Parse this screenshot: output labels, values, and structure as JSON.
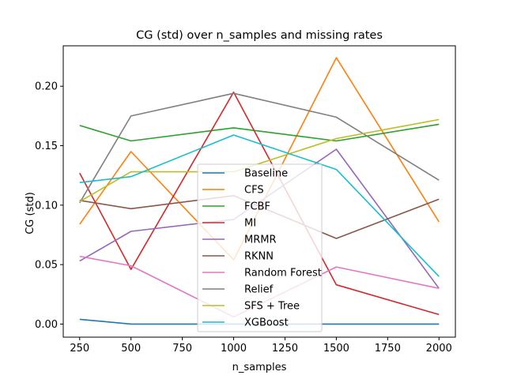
{
  "chart_data": {
    "type": "line",
    "title": "CG (std) over n_samples and missing rates",
    "xlabel": "n_samples",
    "ylabel": "CG (std)",
    "x": [
      250,
      500,
      1000,
      1500,
      2000
    ],
    "xlim": [
      170,
      2080
    ],
    "ylim": [
      -0.011,
      0.234
    ],
    "xticks": [
      250,
      500,
      750,
      1000,
      1250,
      1500,
      1750,
      2000
    ],
    "xtick_labels": [
      "250",
      "500",
      "750",
      "1000",
      "1250",
      "1500",
      "1750",
      "2000"
    ],
    "yticks": [
      0.0,
      0.05,
      0.1,
      0.15,
      0.2
    ],
    "ytick_labels": [
      "0.00",
      "0.05",
      "0.10",
      "0.15",
      "0.20"
    ],
    "grid": false,
    "legend_position": "center",
    "series": [
      {
        "name": "Baseline",
        "color": "#1f77b4",
        "values": [
          0.004,
          0.0,
          0.0,
          0.0,
          0.0
        ]
      },
      {
        "name": "CFS",
        "color": "#ff7f0e",
        "values": [
          0.084,
          0.145,
          0.054,
          0.224,
          0.086
        ]
      },
      {
        "name": "FCBF",
        "color": "#2ca02c",
        "values": [
          0.167,
          0.154,
          0.165,
          0.154,
          0.168
        ]
      },
      {
        "name": "MI",
        "color": "#d62728",
        "values": [
          0.127,
          0.046,
          0.195,
          0.033,
          0.008
        ]
      },
      {
        "name": "MRMR",
        "color": "#9467bd",
        "values": [
          0.053,
          0.078,
          0.088,
          0.147,
          0.03
        ]
      },
      {
        "name": "RKNN",
        "color": "#8c564b",
        "values": [
          0.104,
          0.097,
          0.108,
          0.072,
          0.105
        ]
      },
      {
        "name": "Random Forest",
        "color": "#e377c2",
        "values": [
          0.057,
          0.049,
          0.006,
          0.048,
          0.03
        ]
      },
      {
        "name": "Relief",
        "color": "#7f7f7f",
        "values": [
          0.102,
          0.175,
          0.194,
          0.174,
          0.121
        ]
      },
      {
        "name": "SFS + Tree",
        "color": "#bcbd22",
        "values": [
          0.103,
          0.128,
          0.128,
          0.156,
          0.172
        ]
      },
      {
        "name": "XGBoost",
        "color": "#17becf",
        "values": [
          0.119,
          0.124,
          0.159,
          0.13,
          0.04
        ]
      }
    ]
  }
}
